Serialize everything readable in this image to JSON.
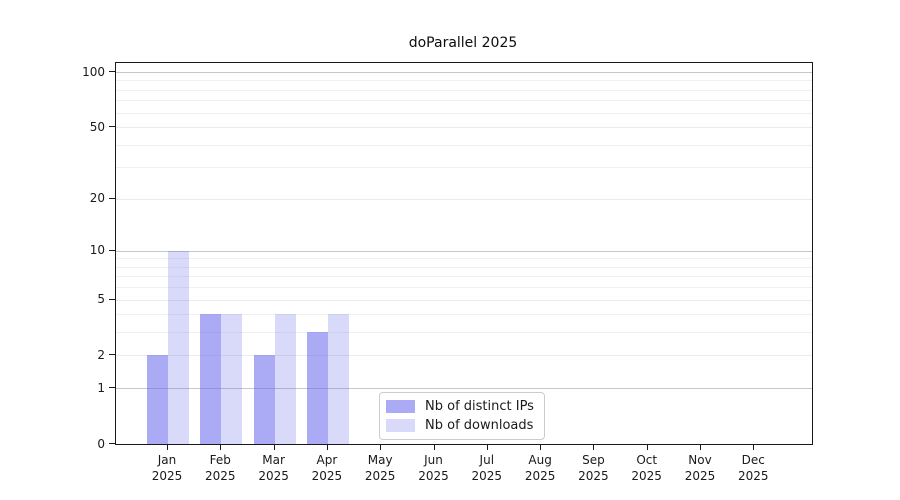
{
  "chart_data": {
    "type": "bar",
    "title": "doParallel 2025",
    "categories": [
      "Jan",
      "Feb",
      "Mar",
      "Apr",
      "May",
      "Jun",
      "Jul",
      "Aug",
      "Sep",
      "Oct",
      "Nov",
      "Dec"
    ],
    "category_year": "2025",
    "series": [
      {
        "name": "Nb of distinct IPs",
        "color": "rgba(102,102,237,0.55)",
        "values": [
          2,
          4,
          2,
          3,
          0,
          0,
          0,
          0,
          0,
          0,
          0,
          0
        ]
      },
      {
        "name": "Nb of downloads",
        "color": "rgba(102,102,237,0.25)",
        "values": [
          10,
          4,
          4,
          4,
          0,
          0,
          0,
          0,
          0,
          0,
          0,
          0
        ]
      }
    ],
    "y_scale": "log1p",
    "y_ticks": [
      0,
      1,
      2,
      5,
      10,
      20,
      50,
      100
    ],
    "y_minor_gridlines": [
      3,
      4,
      6,
      7,
      8,
      9,
      30,
      40,
      60,
      70,
      80,
      90
    ],
    "y_decade_gridlines": [
      1,
      10,
      100
    ],
    "ylim": [
      0,
      112
    ],
    "grid": "horizontal",
    "legend_position": "lower center",
    "colors": {
      "axis": "#1a1a1a",
      "grid_decade": "#c7c7c7",
      "grid_major": "#ebebeb",
      "grid_minor": "#f0f0f0"
    }
  }
}
